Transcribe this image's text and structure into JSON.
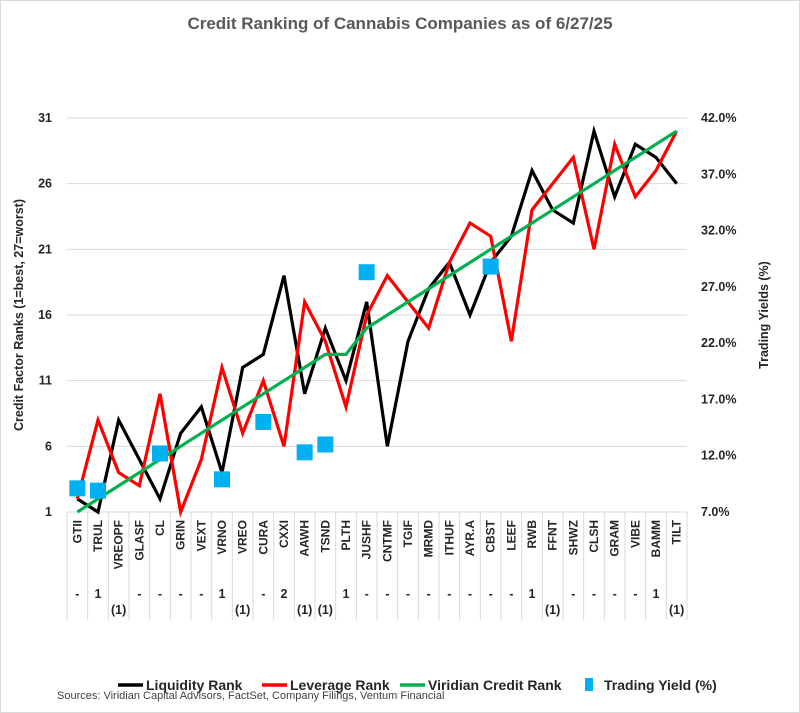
{
  "chart_data": {
    "type": "line",
    "title": "Credit Ranking of Cannabis Companies as of 6/27/25",
    "ylabel": "Credit Factor Ranks (1=best, 27=worst)",
    "y2label": "Trading Yields (%)",
    "ylim": [
      1,
      31
    ],
    "yticks": [
      "31",
      "26",
      "21",
      "16",
      "11",
      "6",
      "1"
    ],
    "y2lim": [
      7.0,
      42.0
    ],
    "y2ticks": [
      "42.0%",
      "37.0%",
      "32.0%",
      "27.0%",
      "22.0%",
      "17.0%",
      "12.0%",
      "7.0%"
    ],
    "grid": true,
    "legend_position": "bottom",
    "categories": [
      "GTII",
      "TRUL",
      "VREOPF",
      "GLASF",
      "CL",
      "GRIN",
      "VEXT",
      "VRNO",
      "VREO",
      "CURA",
      "CXXI",
      "AAWH",
      "TSND",
      "PLTH",
      "JUSHF",
      "CNTMF",
      "TGIF",
      "MRMD",
      "ITHUF",
      "AYR.A",
      "CBST",
      "LEEF",
      "RWB",
      "FFNT",
      "SHWZ",
      "CLSH",
      "GRAM",
      "VIBE",
      "BAMM",
      "TILT"
    ],
    "rank_change": [
      "-",
      "1",
      "(1)",
      "-",
      "-",
      "-",
      "-",
      "1",
      "(1)",
      "-",
      "2",
      "(1)",
      "(1)",
      "1",
      "-",
      "-",
      "-",
      "-",
      "-",
      "-",
      "-",
      "-",
      "1",
      "(1)",
      "-",
      "-",
      "-",
      "-",
      "1",
      "(1)"
    ],
    "series": [
      {
        "name": "Liquidity Rank",
        "color": "#000000",
        "axis": "left",
        "values": [
          2,
          1,
          8,
          5,
          2,
          7,
          9,
          4,
          12,
          13,
          19,
          10,
          15,
          11,
          17,
          6,
          14,
          18,
          20,
          16,
          20,
          22,
          27,
          24,
          23,
          30,
          25,
          29,
          28,
          26
        ]
      },
      {
        "name": "Leverage Rank",
        "color": "#ff0000",
        "axis": "left",
        "values": [
          2,
          8,
          4,
          3,
          10,
          1,
          5,
          12,
          7,
          11,
          6,
          17,
          14,
          9,
          16,
          19,
          17,
          15,
          20,
          23,
          22,
          14,
          24,
          26,
          28,
          21,
          29,
          25,
          27,
          30
        ]
      },
      {
        "name": "Viridian Credit Rank",
        "color": "#00b050",
        "axis": "left",
        "values": [
          1,
          2,
          3,
          4,
          5,
          6,
          7,
          8,
          9,
          10,
          11,
          12,
          13,
          13,
          15,
          16,
          17,
          18,
          19,
          20,
          21,
          22,
          23,
          24,
          25,
          26,
          27,
          28,
          29,
          30
        ]
      },
      {
        "name": "Trading Yield (%)",
        "color": "#00b0f0",
        "axis": "right",
        "type": "scatter",
        "values": [
          9.1,
          8.9,
          null,
          null,
          12.2,
          null,
          null,
          9.9,
          null,
          15.0,
          null,
          12.3,
          13.0,
          null,
          28.3,
          null,
          null,
          null,
          null,
          null,
          28.8,
          null,
          null,
          null,
          null,
          null,
          null,
          null,
          null,
          null
        ]
      }
    ],
    "legend": [
      "Liquidity Rank",
      "Leverage Rank",
      "Viridian Credit Rank",
      "Trading Yield (%)"
    ],
    "source": "Sources: Viridian Capital Advisors, FactSet, Company Filings, Ventum Financial"
  }
}
